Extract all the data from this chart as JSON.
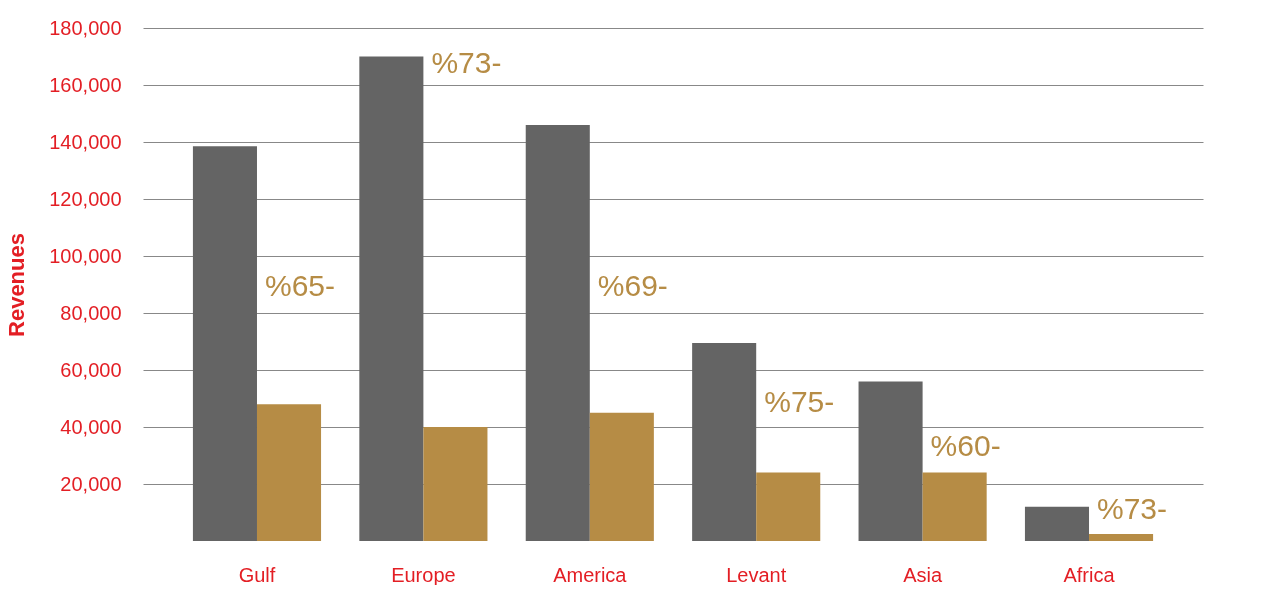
{
  "chart_data": {
    "type": "bar",
    "ylabel": "Revenues",
    "categories": [
      "Gulf",
      "Europe",
      "America",
      "Levant",
      "Asia",
      "Africa"
    ],
    "series": [
      {
        "color": "#646464",
        "values": [
          138500,
          170000,
          146000,
          69500,
          56000,
          12000
        ]
      },
      {
        "color": "#b68c45",
        "values": [
          48000,
          40000,
          45000,
          24000,
          24000,
          2500
        ]
      }
    ],
    "ylim": [
      0,
      180000
    ],
    "yticks": [
      {
        "value": 20000,
        "label": "20,000"
      },
      {
        "value": 40000,
        "label": "40,000"
      },
      {
        "value": 60000,
        "label": "60,000"
      },
      {
        "value": 80000,
        "label": "80,000"
      },
      {
        "value": 100000,
        "label": "100,000"
      },
      {
        "value": 120000,
        "label": "120,000"
      },
      {
        "value": 140000,
        "label": "140,000"
      },
      {
        "value": 160000,
        "label": "160,000"
      },
      {
        "value": 180000,
        "label": "180,000"
      }
    ],
    "grid": "y",
    "legend": false,
    "annotations": [
      {
        "text": "%65-",
        "x": "Gulf",
        "y": 89000
      },
      {
        "text": "%73-",
        "x": "Europe",
        "y": 167500
      },
      {
        "text": "%69-",
        "x": "America",
        "y": 89000
      },
      {
        "text": "%75-",
        "x": "Levant",
        "y": 48500
      },
      {
        "text": "%60-",
        "x": "Asia",
        "y": 33000
      },
      {
        "text": "%73-",
        "x": "Africa",
        "y": 11000
      }
    ]
  }
}
